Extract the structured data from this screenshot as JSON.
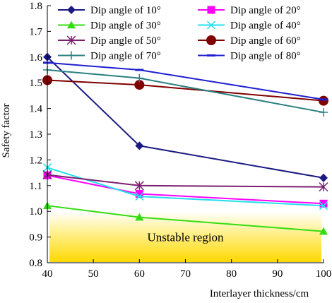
{
  "chart_data": {
    "type": "line",
    "xlabel": "Interlayer thickness/cm",
    "ylabel": "Safety factor",
    "x_ticks": [
      40,
      50,
      60,
      70,
      80,
      90,
      100
    ],
    "y_ticks": [
      0.8,
      0.9,
      1.0,
      1.1,
      1.2,
      1.3,
      1.4,
      1.5,
      1.6,
      1.7,
      1.8
    ],
    "xlim": [
      40,
      100
    ],
    "ylim": [
      0.8,
      1.8
    ],
    "grid": false,
    "legend_position": "top-right",
    "annotation": "Unstable region",
    "unstable_region": {
      "y_from": 0.8,
      "y_to": 1.0
    },
    "series": [
      {
        "name": "Dip angle of 10°",
        "color": "#1a1a80",
        "marker": "diamond",
        "x": [
          40,
          60,
          100
        ],
        "y": [
          1.6,
          1.255,
          1.13
        ]
      },
      {
        "name": "Dip angle of 20°",
        "color": "#ff00ff",
        "marker": "square",
        "x": [
          40,
          60,
          100
        ],
        "y": [
          1.14,
          1.068,
          1.03
        ]
      },
      {
        "name": "Dip angle of 30°",
        "color": "#33dd11",
        "marker": "triangle",
        "x": [
          40,
          60,
          100
        ],
        "y": [
          1.022,
          0.977,
          0.922
        ]
      },
      {
        "name": "Dip angle of 40°",
        "color": "#22e0ee",
        "marker": "x",
        "x": [
          40,
          60,
          100
        ],
        "y": [
          1.17,
          1.058,
          1.022
        ]
      },
      {
        "name": "Dip angle of 50°",
        "color": "#7a1f6e",
        "marker": "star",
        "x": [
          40,
          60,
          100
        ],
        "y": [
          1.142,
          1.1,
          1.095
        ]
      },
      {
        "name": "Dip angle of 60°",
        "color": "#800000",
        "marker": "circle",
        "x": [
          40,
          60,
          100
        ],
        "y": [
          1.51,
          1.492,
          1.43
        ]
      },
      {
        "name": "Dip angle of 70°",
        "color": "#2a8080",
        "marker": "plus",
        "x": [
          40,
          60,
          100
        ],
        "y": [
          1.55,
          1.518,
          1.385
        ]
      },
      {
        "name": "Dip angle of 80°",
        "color": "#1f1fd0",
        "marker": "dash",
        "x": [
          40,
          60,
          100
        ],
        "y": [
          1.578,
          1.55,
          1.435
        ]
      }
    ]
  }
}
